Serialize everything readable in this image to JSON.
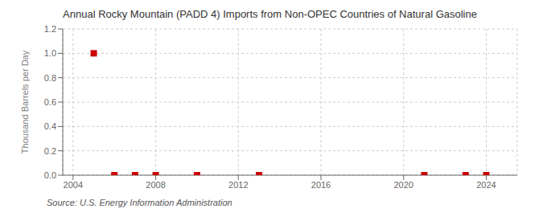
{
  "chart_data": {
    "type": "scatter",
    "title": "Annual Rocky Mountain (PADD 4) Imports from Non-OPEC Countries of Natural Gasoline",
    "y_label": "Thousand Barrels per Day",
    "annotations": [
      "Source: U.S. Energy Information Administration"
    ],
    "x": [
      2005,
      2006,
      2007,
      2008,
      2010,
      2013,
      2021,
      2023,
      2024
    ],
    "values": [
      1.0,
      0.0,
      0.0,
      0.0,
      0.0,
      0.0,
      0.0,
      0.0,
      0.0
    ],
    "color": "#cc0000",
    "marker": "square",
    "xlim": [
      2003.5,
      2025.5
    ],
    "ylim": [
      0.0,
      1.2
    ],
    "xticks": [
      2004,
      2008,
      2012,
      2016,
      2020,
      2024
    ],
    "yticks": [
      {
        "value": 0.0,
        "label": "0.0"
      },
      {
        "value": 0.2,
        "label": "0.2"
      },
      {
        "value": 0.4,
        "label": "0.4"
      },
      {
        "value": 0.6,
        "label": "0.6"
      },
      {
        "value": 0.8,
        "label": "0.8"
      },
      {
        "value": 1.0,
        "label": "1.0"
      },
      {
        "value": 1.2,
        "label": "1.2"
      }
    ],
    "grid": true
  }
}
